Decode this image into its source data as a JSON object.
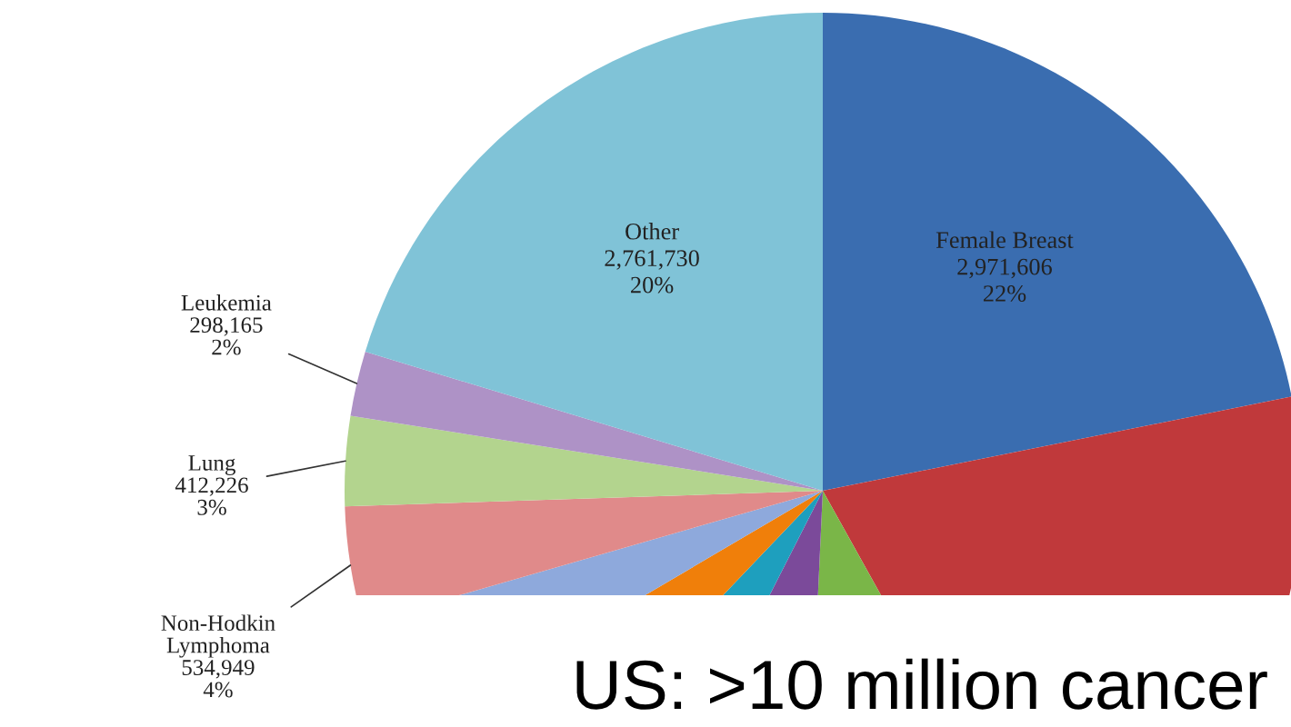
{
  "chart_data": {
    "type": "pie",
    "title": "US: >10 million cancer",
    "categories": [
      "Female Breast",
      null,
      null,
      null,
      null,
      null,
      null,
      "Non-Hodkin Lymphoma",
      "Lung",
      "Leukemia",
      "Other"
    ],
    "values": [
      2971606,
      2730000,
      1200000,
      920000,
      630000,
      600000,
      545000,
      534949,
      412226,
      298165,
      2761730
    ],
    "value_labels": [
      "2,971,606\n22%",
      null,
      null,
      null,
      null,
      null,
      null,
      "534,949\n4%",
      "412,226\n3%",
      "298,165\n2%",
      "2,761,730\n20%"
    ],
    "colors": [
      "#3a6db0",
      "#c0393b",
      "#7ab648",
      "#7b4a9a",
      "#1e9fbe",
      "#f07f0a",
      "#8ea9dc",
      "#e08a8a",
      "#b3d48e",
      "#ae92c6",
      "#80c3d7"
    ]
  }
}
